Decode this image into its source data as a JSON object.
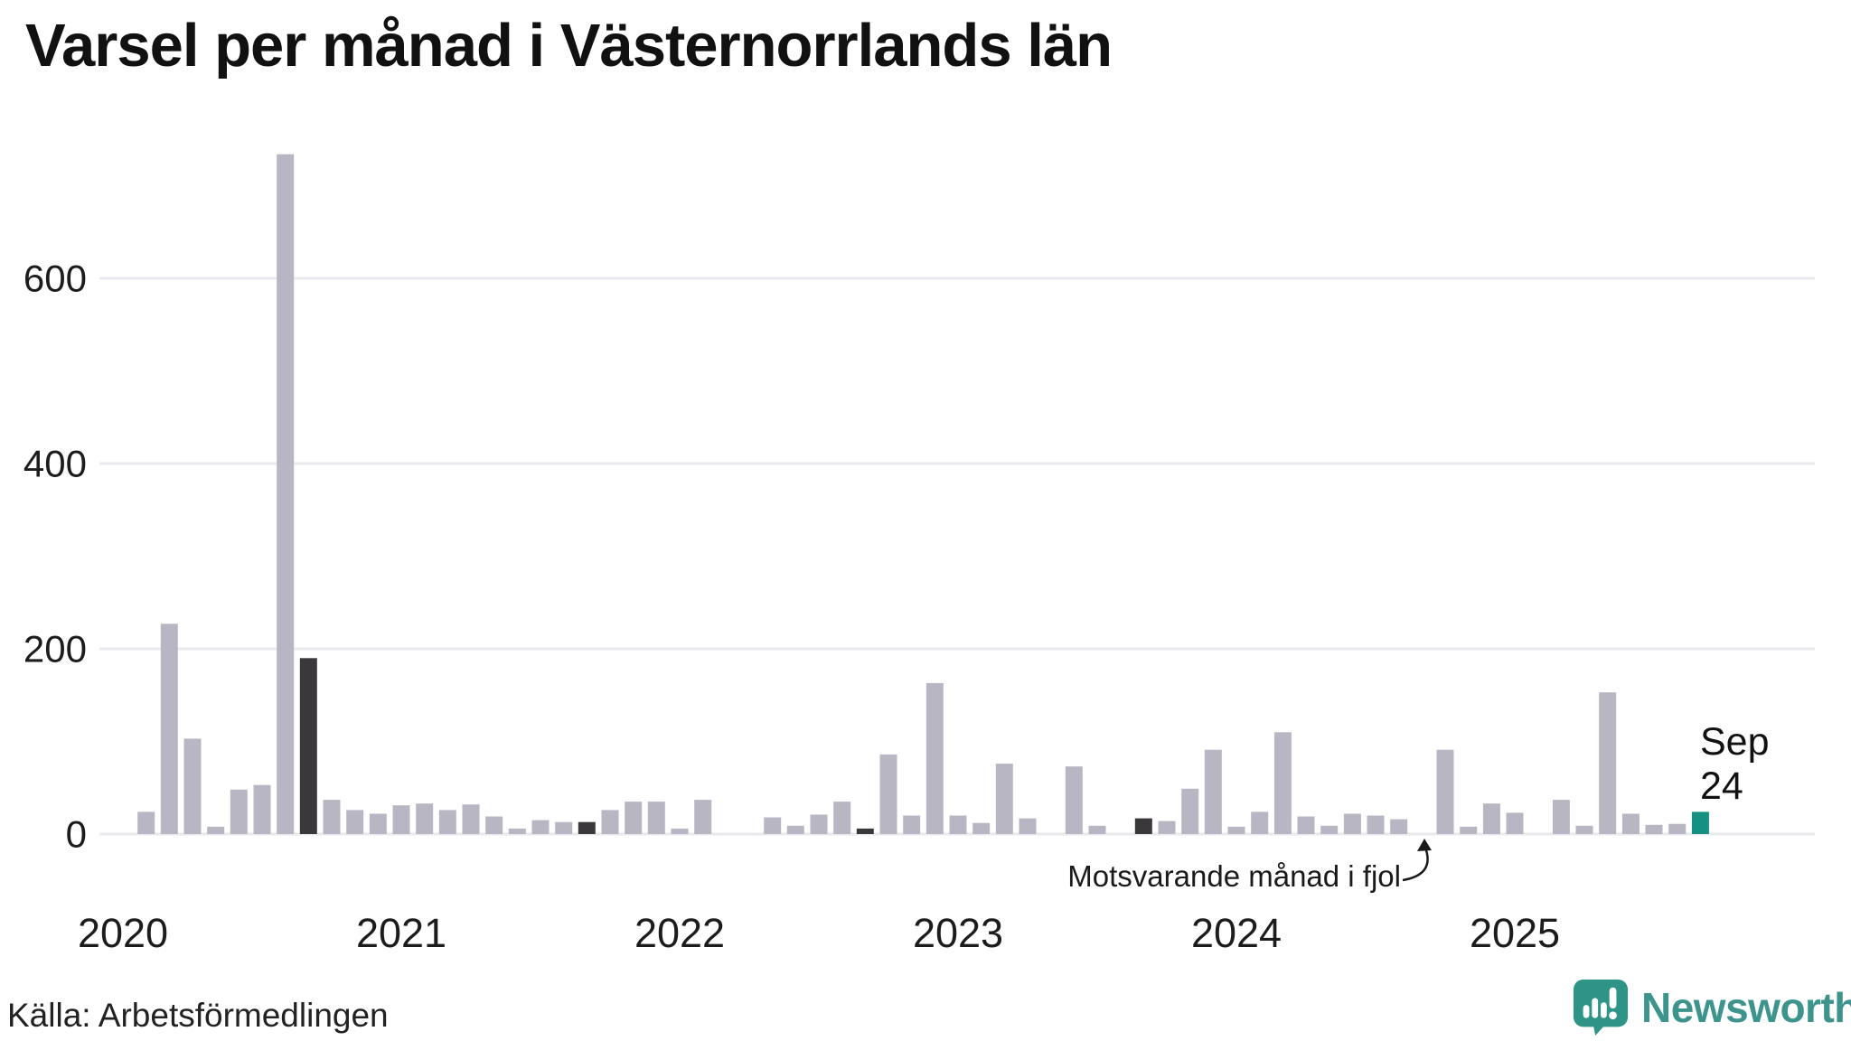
{
  "title": "Varsel per månad i Västernorrlands län",
  "source": "Källa: Arbetsförmedlingen",
  "annotation": {
    "text": "Motsvarande månad i fjol"
  },
  "latest_label": {
    "line1": "Sep",
    "line2": "24"
  },
  "branding": {
    "logo_text": "Newsworthy"
  },
  "colors": {
    "bar": "#b9b6c4",
    "reference": "#3a383a",
    "latest": "#149180",
    "gridline": "#eae9ee",
    "axis_text": "#1c1c1c",
    "logo": "#3d948c",
    "logo_icon": "#2f9488"
  },
  "chart_data": {
    "type": "bar",
    "title": "Varsel per månad i Västernorrlands län",
    "xlabel": "",
    "ylabel": "",
    "ylim": [
      0,
      760
    ],
    "yticks": [
      0,
      200,
      400,
      600
    ],
    "grid": true,
    "legend": "none",
    "year_ticks": [
      "2020",
      "2021",
      "2022",
      "2023",
      "2024",
      "2025"
    ],
    "months": [
      {
        "month": "2020-01",
        "value": 0,
        "type": "normal"
      },
      {
        "month": "2020-02",
        "value": 24,
        "type": "normal"
      },
      {
        "month": "2020-03",
        "value": 227,
        "type": "normal"
      },
      {
        "month": "2020-04",
        "value": 103,
        "type": "normal"
      },
      {
        "month": "2020-05",
        "value": 8,
        "type": "normal"
      },
      {
        "month": "2020-06",
        "value": 48,
        "type": "normal"
      },
      {
        "month": "2020-07",
        "value": 53,
        "type": "normal"
      },
      {
        "month": "2020-08",
        "value": 734,
        "type": "normal"
      },
      {
        "month": "2020-09",
        "value": 190,
        "type": "reference"
      },
      {
        "month": "2020-10",
        "value": 37,
        "type": "normal"
      },
      {
        "month": "2020-11",
        "value": 26,
        "type": "normal"
      },
      {
        "month": "2020-12",
        "value": 22,
        "type": "normal"
      },
      {
        "month": "2021-01",
        "value": 31,
        "type": "normal"
      },
      {
        "month": "2021-02",
        "value": 33,
        "type": "normal"
      },
      {
        "month": "2021-03",
        "value": 26,
        "type": "normal"
      },
      {
        "month": "2021-04",
        "value": 32,
        "type": "normal"
      },
      {
        "month": "2021-05",
        "value": 19,
        "type": "normal"
      },
      {
        "month": "2021-06",
        "value": 6,
        "type": "normal"
      },
      {
        "month": "2021-07",
        "value": 15,
        "type": "normal"
      },
      {
        "month": "2021-08",
        "value": 13,
        "type": "normal"
      },
      {
        "month": "2021-09",
        "value": 13,
        "type": "reference"
      },
      {
        "month": "2021-10",
        "value": 26,
        "type": "normal"
      },
      {
        "month": "2021-11",
        "value": 35,
        "type": "normal"
      },
      {
        "month": "2021-12",
        "value": 35,
        "type": "normal"
      },
      {
        "month": "2022-01",
        "value": 6,
        "type": "normal"
      },
      {
        "month": "2022-02",
        "value": 37,
        "type": "normal"
      },
      {
        "month": "2022-03",
        "value": 0,
        "type": "normal"
      },
      {
        "month": "2022-04",
        "value": 0,
        "type": "normal"
      },
      {
        "month": "2022-05",
        "value": 18,
        "type": "normal"
      },
      {
        "month": "2022-06",
        "value": 9,
        "type": "normal"
      },
      {
        "month": "2022-07",
        "value": 21,
        "type": "normal"
      },
      {
        "month": "2022-08",
        "value": 35,
        "type": "normal"
      },
      {
        "month": "2022-09",
        "value": 6,
        "type": "reference"
      },
      {
        "month": "2022-10",
        "value": 86,
        "type": "normal"
      },
      {
        "month": "2022-11",
        "value": 20,
        "type": "normal"
      },
      {
        "month": "2022-12",
        "value": 163,
        "type": "normal"
      },
      {
        "month": "2023-01",
        "value": 20,
        "type": "normal"
      },
      {
        "month": "2023-02",
        "value": 12,
        "type": "normal"
      },
      {
        "month": "2023-03",
        "value": 76,
        "type": "normal"
      },
      {
        "month": "2023-04",
        "value": 17,
        "type": "normal"
      },
      {
        "month": "2023-05",
        "value": 0,
        "type": "normal"
      },
      {
        "month": "2023-06",
        "value": 73,
        "type": "normal"
      },
      {
        "month": "2023-07",
        "value": 9,
        "type": "normal"
      },
      {
        "month": "2023-08",
        "value": 0,
        "type": "normal"
      },
      {
        "month": "2023-09",
        "value": 17,
        "type": "reference"
      },
      {
        "month": "2023-10",
        "value": 14,
        "type": "normal"
      },
      {
        "month": "2023-11",
        "value": 49,
        "type": "normal"
      },
      {
        "month": "2023-12",
        "value": 91,
        "type": "normal"
      },
      {
        "month": "2024-01",
        "value": 8,
        "type": "normal"
      },
      {
        "month": "2024-02",
        "value": 24,
        "type": "normal"
      },
      {
        "month": "2024-03",
        "value": 110,
        "type": "normal"
      },
      {
        "month": "2024-04",
        "value": 19,
        "type": "normal"
      },
      {
        "month": "2024-05",
        "value": 9,
        "type": "normal"
      },
      {
        "month": "2024-06",
        "value": 22,
        "type": "normal"
      },
      {
        "month": "2024-07",
        "value": 20,
        "type": "normal"
      },
      {
        "month": "2024-08",
        "value": 16,
        "type": "normal"
      },
      {
        "month": "2024-09",
        "value": 0,
        "type": "reference"
      },
      {
        "month": "2024-10",
        "value": 91,
        "type": "normal"
      },
      {
        "month": "2024-11",
        "value": 8,
        "type": "normal"
      },
      {
        "month": "2024-12",
        "value": 33,
        "type": "normal"
      },
      {
        "month": "2025-01",
        "value": 23,
        "type": "normal"
      },
      {
        "month": "2025-02",
        "value": 0,
        "type": "normal"
      },
      {
        "month": "2025-03",
        "value": 37,
        "type": "normal"
      },
      {
        "month": "2025-04",
        "value": 9,
        "type": "normal"
      },
      {
        "month": "2025-05",
        "value": 153,
        "type": "normal"
      },
      {
        "month": "2025-06",
        "value": 22,
        "type": "normal"
      },
      {
        "month": "2025-07",
        "value": 10,
        "type": "normal"
      },
      {
        "month": "2025-08",
        "value": 11,
        "type": "normal"
      },
      {
        "month": "2025-09",
        "value": 24,
        "type": "latest"
      }
    ]
  }
}
